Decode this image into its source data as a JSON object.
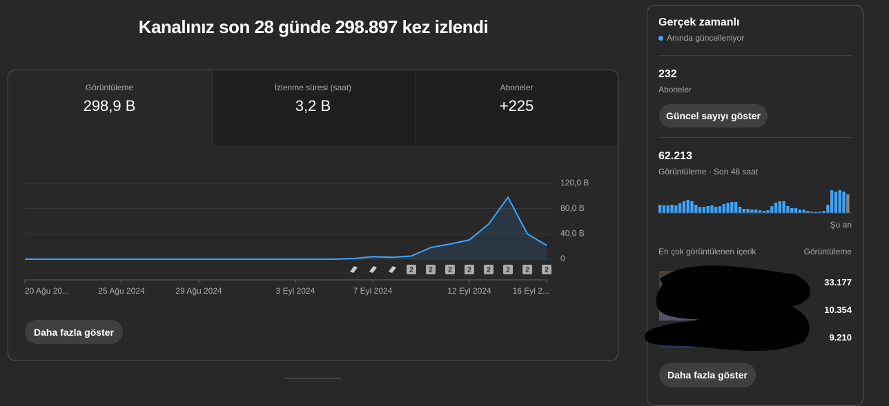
{
  "header": {
    "title": "Kanalınız son 28 günde 298.897 kez izlendi"
  },
  "tabs": [
    {
      "label": "Görüntüleme",
      "value": "298,9 B"
    },
    {
      "label": "İzlenme süresi (saat)",
      "value": "3,2 B"
    },
    {
      "label": "Aboneler",
      "value": "+225"
    }
  ],
  "chart": {
    "type": "line",
    "color": "#3ea6ff",
    "categories": [
      "20 Ağu 20...",
      null,
      null,
      null,
      null,
      "25 Ağu 2024",
      null,
      null,
      null,
      "29 Ağu 2024",
      null,
      null,
      null,
      null,
      "3 Eyl 2024",
      null,
      null,
      null,
      "7 Eyl 2024",
      null,
      null,
      null,
      null,
      "12 Eyl 2024",
      null,
      null,
      null,
      "16 Eyl 2..."
    ],
    "values": [
      0,
      0,
      0,
      0,
      0,
      0,
      0,
      0,
      0,
      0,
      0,
      0,
      0,
      0,
      0,
      0,
      0,
      1,
      4,
      3,
      5,
      18.5,
      24,
      30.5,
      55.6,
      98,
      40,
      22
    ],
    "ylim": [
      0,
      120
    ],
    "yticks": [
      0,
      {
        "value": 40,
        "label": "40,0 B"
      },
      {
        "value": 80,
        "label": "80,0 B"
      },
      {
        "value": 120,
        "label": "120,0 B"
      }
    ],
    "badges": [
      "2",
      "2",
      "2",
      "2",
      "2",
      "2",
      "2",
      "2"
    ],
    "grid": true
  },
  "more_button": "Daha fazla göster",
  "realtime": {
    "title": "Gerçek zamanlı",
    "status": "Anında güncelleniyor",
    "subscribers": {
      "value": "232",
      "label": "Aboneler",
      "button": "Güncel sayıyı göster"
    },
    "views": {
      "value": "62.213",
      "label": "Görüntüleme · Son 48 saat",
      "now": "Şu an",
      "chart": {
        "type": "bar",
        "color": "#3ea6ff",
        "values": [
          12,
          11,
          11,
          12,
          11,
          14,
          17,
          19,
          17,
          12,
          9,
          9,
          10,
          11,
          9,
          10,
          13,
          15,
          16,
          16,
          9,
          6,
          6,
          5,
          5,
          4,
          3,
          4,
          10,
          15,
          17,
          17,
          10,
          7,
          7,
          5,
          5,
          3,
          2,
          2,
          2,
          3,
          12,
          33,
          31,
          33,
          31,
          27
        ]
      }
    },
    "top_content": {
      "title": "En çok görüntülenen içerik",
      "column": "Görüntüleme",
      "rows": [
        "33.177",
        "10.354",
        "9.210"
      ]
    },
    "button": "Daha fazla göster"
  }
}
